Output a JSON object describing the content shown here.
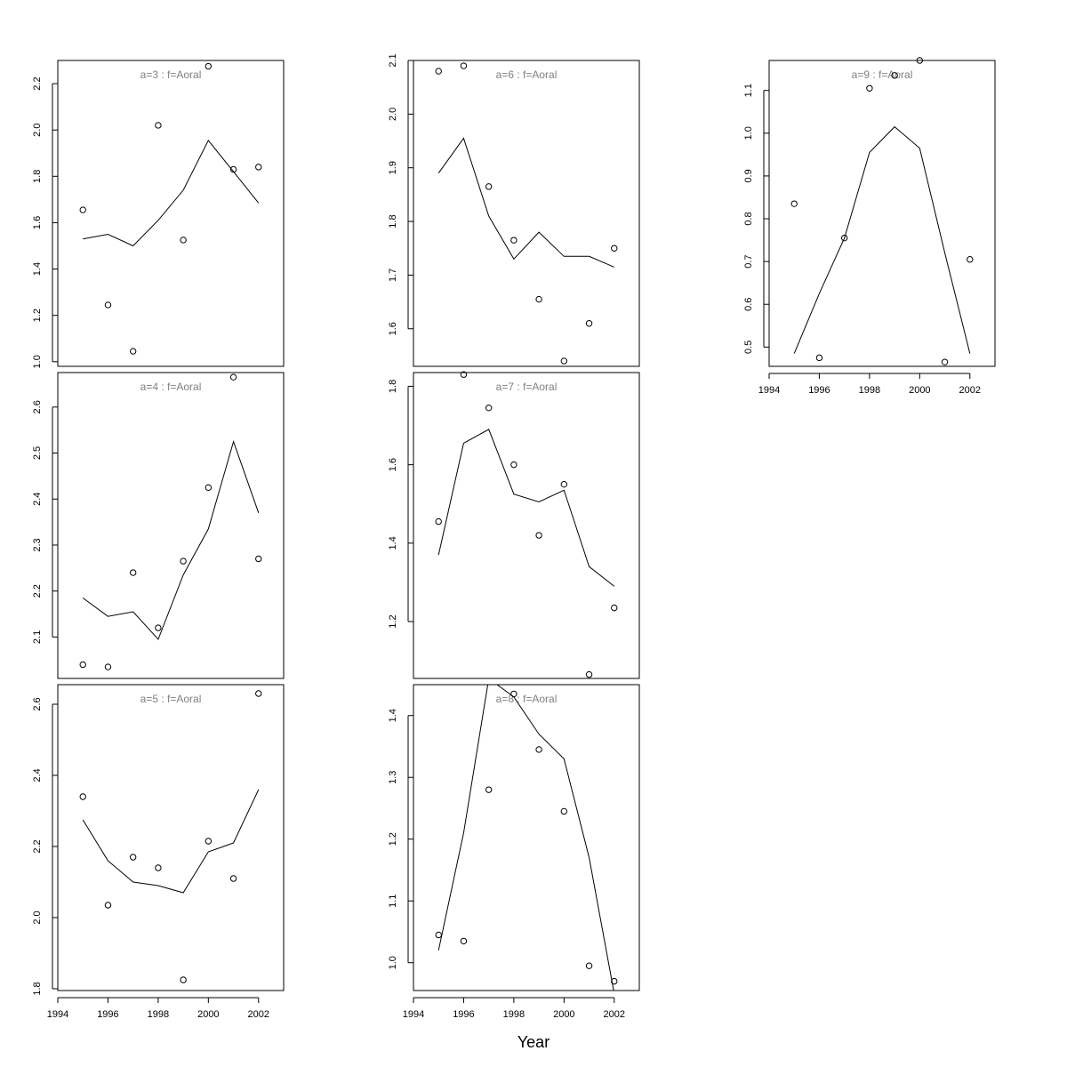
{
  "figure": {
    "xlabel": "Year"
  },
  "chart_data": [
    {
      "type": "line",
      "title": "a=3  :  f=Aoral",
      "x": [
        1995,
        1996,
        1997,
        1998,
        1999,
        2000,
        2001,
        2002
      ],
      "series": [
        {
          "values": [
            1.53,
            1.55,
            1.5,
            1.61,
            1.74,
            1.955,
            1.82,
            1.685
          ]
        },
        {
          "values": [
            1.655,
            1.245,
            1.045,
            2.02,
            1.525,
            2.275,
            1.83,
            1.84
          ]
        }
      ],
      "ylim": [
        0.98,
        2.3
      ],
      "yticks": [
        1.0,
        1.2,
        1.4,
        1.6,
        1.8,
        2.0,
        2.2
      ],
      "ytick_labels": [
        "1.0",
        "1.2",
        "1.4",
        "1.6",
        "1.8",
        "2.0",
        "2.2"
      ],
      "x_axis_shown": false,
      "xlim": [
        1994,
        2003
      ]
    },
    {
      "type": "line",
      "title": "a=4  :  f=Aoral",
      "x": [
        1995,
        1996,
        1997,
        1998,
        1999,
        2000,
        2001,
        2002
      ],
      "series": [
        {
          "values": [
            2.185,
            2.145,
            2.155,
            2.095,
            2.235,
            2.335,
            2.525,
            2.37
          ]
        },
        {
          "values": [
            2.04,
            2.035,
            2.24,
            2.12,
            2.265,
            2.425,
            2.665,
            2.27
          ]
        }
      ],
      "ylim": [
        2.01,
        2.675
      ],
      "yticks": [
        2.1,
        2.2,
        2.3,
        2.4,
        2.5,
        2.6
      ],
      "ytick_labels": [
        "2.1",
        "2.2",
        "2.3",
        "2.4",
        "2.5",
        "2.6"
      ],
      "x_axis_shown": false,
      "xlim": [
        1994,
        2003
      ]
    },
    {
      "type": "line",
      "title": "a=5  :  f=Aoral",
      "x": [
        1995,
        1996,
        1997,
        1998,
        1999,
        2000,
        2001,
        2002
      ],
      "series": [
        {
          "values": [
            2.275,
            2.16,
            2.1,
            2.09,
            2.07,
            2.185,
            2.21,
            2.36
          ]
        },
        {
          "values": [
            2.34,
            2.035,
            2.17,
            2.14,
            1.825,
            2.215,
            2.11,
            2.63
          ]
        }
      ],
      "ylim": [
        1.795,
        2.655
      ],
      "yticks": [
        1.8,
        2.0,
        2.2,
        2.4,
        2.6
      ],
      "ytick_labels": [
        "1.8",
        "2.0",
        "2.2",
        "2.4",
        "2.6"
      ],
      "x_axis_shown": true,
      "xlim": [
        1994,
        2003
      ],
      "xticks": [
        1994,
        1996,
        1998,
        2000,
        2002
      ],
      "xtick_labels": [
        "1994",
        "1996",
        "1998",
        "2000",
        "2002"
      ]
    },
    {
      "type": "line",
      "title": "a=6  :  f=Aoral",
      "x": [
        1995,
        1996,
        1997,
        1998,
        1999,
        2000,
        2001,
        2002
      ],
      "series": [
        {
          "values": [
            1.89,
            1.955,
            1.81,
            1.73,
            1.78,
            1.735,
            1.735,
            1.715
          ]
        },
        {
          "values": [
            2.08,
            2.09,
            1.865,
            1.765,
            1.655,
            1.54,
            1.61,
            1.75
          ]
        }
      ],
      "ylim": [
        1.53,
        2.1
      ],
      "yticks": [
        1.6,
        1.7,
        1.8,
        1.9,
        2.0,
        2.1
      ],
      "ytick_labels": [
        "1.6",
        "1.7",
        "1.8",
        "1.9",
        "2.0",
        "2.1"
      ],
      "x_axis_shown": false,
      "xlim": [
        1994,
        2003
      ]
    },
    {
      "type": "line",
      "title": "a=7  :  f=Aoral",
      "x": [
        1995,
        1996,
        1997,
        1998,
        1999,
        2000,
        2001,
        2002
      ],
      "series": [
        {
          "values": [
            1.37,
            1.655,
            1.69,
            1.525,
            1.505,
            1.535,
            1.34,
            1.29
          ]
        },
        {
          "values": [
            1.455,
            1.83,
            1.745,
            1.6,
            1.42,
            1.55,
            1.065,
            1.235
          ]
        }
      ],
      "ylim": [
        1.055,
        1.835
      ],
      "yticks": [
        1.2,
        1.4,
        1.6,
        1.8
      ],
      "ytick_labels": [
        "1.2",
        "1.4",
        "1.6",
        "1.8"
      ],
      "x_axis_shown": false,
      "xlim": [
        1994,
        2003
      ]
    },
    {
      "type": "line",
      "title": "a=8  :  f=Aoral",
      "x": [
        1995,
        1996,
        1997,
        1998,
        1999,
        2000,
        2001,
        2002
      ],
      "series": [
        {
          "values": [
            1.02,
            1.21,
            1.46,
            1.43,
            1.37,
            1.33,
            1.17,
            0.95
          ]
        },
        {
          "values": [
            1.045,
            1.035,
            1.28,
            1.435,
            1.345,
            1.245,
            0.995,
            0.97
          ]
        }
      ],
      "ylim": [
        0.955,
        1.45
      ],
      "yticks": [
        1.0,
        1.1,
        1.2,
        1.3,
        1.4
      ],
      "ytick_labels": [
        "1.0",
        "1.1",
        "1.2",
        "1.3",
        "1.4"
      ],
      "x_axis_shown": true,
      "xlim": [
        1994,
        2003
      ],
      "xticks": [
        1994,
        1996,
        1998,
        2000,
        2002
      ],
      "xtick_labels": [
        "1994",
        "1996",
        "1998",
        "2000",
        "2002"
      ]
    },
    {
      "type": "line",
      "title": "a=9  :  f=Aoral",
      "x": [
        1995,
        1996,
        1997,
        1998,
        1999,
        2000,
        2001,
        2002
      ],
      "series": [
        {
          "values": [
            0.485,
            0.625,
            0.755,
            0.955,
            1.015,
            0.965,
            0.72,
            0.485
          ]
        },
        {
          "values": [
            0.835,
            0.475,
            0.755,
            1.105,
            1.135,
            1.17,
            0.465,
            0.705
          ]
        }
      ],
      "ylim": [
        0.455,
        1.17
      ],
      "yticks": [
        0.5,
        0.6,
        0.7,
        0.8,
        0.9,
        1.0,
        1.1
      ],
      "ytick_labels": [
        "0.5",
        "0.6",
        "0.7",
        "0.8",
        "0.9",
        "1.0",
        "1.1"
      ],
      "x_axis_shown": true,
      "xlim": [
        1994,
        2003
      ],
      "xticks": [
        1994,
        1996,
        1998,
        2000,
        2002
      ],
      "xtick_labels": [
        "1994",
        "1996",
        "1998",
        "2000",
        "2002"
      ]
    }
  ]
}
